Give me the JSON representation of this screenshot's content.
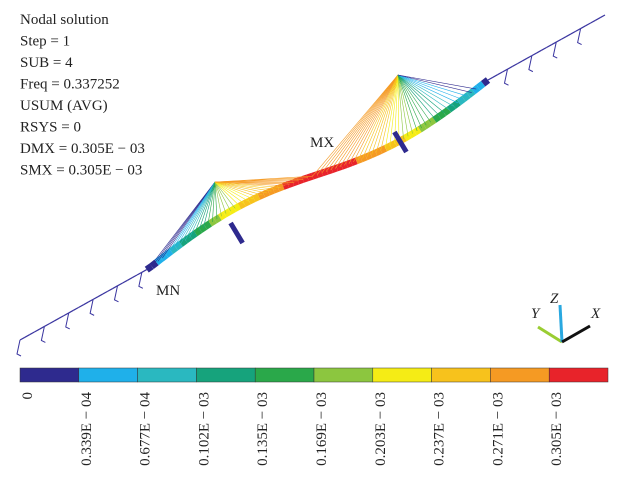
{
  "info_lines": [
    "Nodal solution",
    "Step = 1",
    "SUB = 4",
    "Freq = 0.337252",
    "USUM (AVG)",
    "RSYS = 0",
    "DMX = 0.305E − 03",
    "SMX = 0.305E − 03"
  ],
  "markers": {
    "min": "MN",
    "max": "MX"
  },
  "triad": {
    "y": "Y",
    "z": "Z",
    "x": "X"
  },
  "legend": {
    "colors": [
      "#2e2a8e",
      "#1fb0ea",
      "#2ab8c0",
      "#16a37c",
      "#2aa84a",
      "#8cc63f",
      "#f5ec15",
      "#f7c21c",
      "#f59a23",
      "#e8232a"
    ],
    "labels": [
      "0",
      "0.339E − 04",
      "0.677E − 04",
      "0.102E − 03",
      "0.135E − 03",
      "0.169E − 03",
      "0.203E − 03",
      "0.237E − 03",
      "0.271E − 03",
      "0.305E − 03"
    ]
  }
}
